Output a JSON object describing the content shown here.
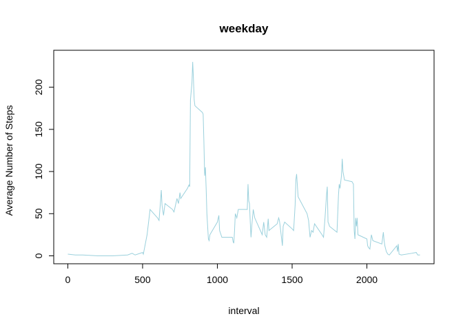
{
  "chart_data": {
    "type": "line",
    "title": "weekday",
    "x_label": "interval",
    "y_label": "Average Number of Steps",
    "x": [
      0,
      50,
      100,
      200,
      300,
      400,
      430,
      450,
      500,
      505,
      530,
      550,
      600,
      610,
      620,
      625,
      630,
      640,
      650,
      700,
      710,
      720,
      730,
      740,
      750,
      755,
      800,
      810,
      815,
      820,
      830,
      835,
      840,
      845,
      850,
      900,
      905,
      910,
      915,
      920,
      925,
      930,
      940,
      945,
      950,
      1000,
      1010,
      1015,
      1030,
      1100,
      1105,
      1110,
      1115,
      1120,
      1130,
      1140,
      1200,
      1205,
      1210,
      1215,
      1220,
      1225,
      1230,
      1240,
      1250,
      1300,
      1310,
      1320,
      1330,
      1340,
      1345,
      1400,
      1410,
      1415,
      1420,
      1430,
      1435,
      1440,
      1450,
      1500,
      1510,
      1515,
      1520,
      1525,
      1530,
      1540,
      1600,
      1610,
      1620,
      1630,
      1640,
      1650,
      1700,
      1710,
      1720,
      1730,
      1735,
      1740,
      1745,
      1750,
      1800,
      1810,
      1815,
      1820,
      1830,
      1835,
      1840,
      1850,
      1900,
      1910,
      1915,
      1920,
      1925,
      1930,
      1935,
      1940,
      2000,
      2005,
      2010,
      2020,
      2030,
      2040,
      2100,
      2110,
      2115,
      2120,
      2130,
      2140,
      2150,
      2200,
      2205,
      2210,
      2215,
      2230,
      2300,
      2330,
      2340,
      2355
    ],
    "series": [
      {
        "name": "weekday",
        "color": "#9ad0dc",
        "values": [
          2,
          1,
          1,
          0,
          0,
          1,
          3,
          1,
          4,
          2,
          25,
          55,
          45,
          42,
          65,
          78,
          60,
          48,
          62,
          55,
          52,
          60,
          68,
          62,
          75,
          68,
          80,
          84,
          82,
          185,
          205,
          230,
          210,
          185,
          178,
          170,
          168,
          135,
          95,
          105,
          80,
          50,
          20,
          18,
          25,
          40,
          48,
          30,
          22,
          22,
          17,
          15,
          30,
          50,
          45,
          55,
          55,
          85,
          65,
          62,
          40,
          22,
          35,
          55,
          45,
          25,
          40,
          25,
          22,
          44,
          30,
          38,
          45,
          42,
          35,
          20,
          12,
          35,
          40,
          32,
          30,
          45,
          60,
          90,
          97,
          70,
          50,
          42,
          22,
          30,
          28,
          38,
          25,
          22,
          45,
          72,
          82,
          40,
          38,
          35,
          28,
          72,
          85,
          80,
          95,
          115,
          100,
          90,
          88,
          85,
          30,
          20,
          45,
          35,
          45,
          25,
          20,
          12,
          10,
          8,
          25,
          18,
          14,
          28,
          18,
          12,
          5,
          2,
          1,
          12,
          5,
          14,
          2,
          1,
          3,
          4,
          1,
          1
        ]
      }
    ],
    "xlim": [
      -94.2,
      2449.2
    ],
    "ylim": [
      -9.4,
      243.8
    ],
    "xticks": [
      0,
      500,
      1000,
      1500,
      2000
    ],
    "yticks": [
      0,
      50,
      100,
      150,
      200
    ]
  }
}
